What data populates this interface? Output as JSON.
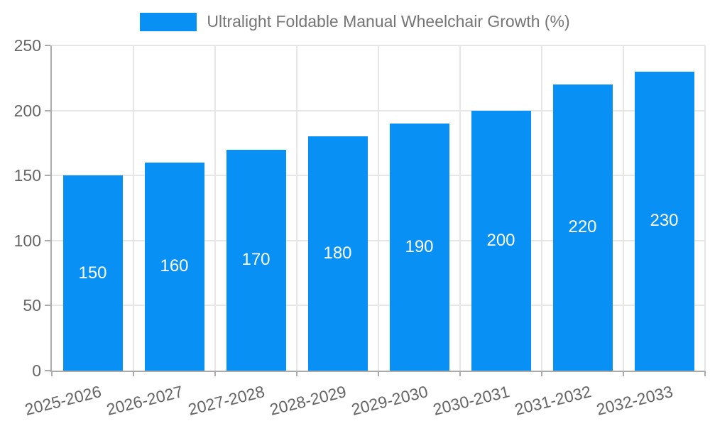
{
  "legend": {
    "items": [
      {
        "label": "Ultralight Foldable Manual Wheelchair Growth (%)",
        "color": "#0890f4"
      }
    ],
    "position": "top-center"
  },
  "chart_data": {
    "type": "bar",
    "title": "",
    "legend": [
      "Ultralight Foldable Manual Wheelchair Growth (%)"
    ],
    "legend_position": "top",
    "categories": [
      "2025-2026",
      "2026-2027",
      "2027-2028",
      "2028-2029",
      "2029-2030",
      "2030-2031",
      "2031-2032",
      "2032-2033"
    ],
    "series": [
      {
        "name": "Ultralight Foldable Manual Wheelchair Growth (%)",
        "values": [
          150,
          160,
          170,
          180,
          190,
          200,
          220,
          230
        ]
      }
    ],
    "bar_value_labels": [
      150,
      160,
      170,
      180,
      190,
      200,
      220,
      230
    ],
    "xlabel": "",
    "ylabel": "",
    "ylim": [
      0,
      250
    ],
    "yticks": [
      0,
      50,
      100,
      150,
      200,
      250
    ],
    "grid": true,
    "x_tick_rotation_deg": -14
  },
  "style": {
    "bar_color": "#0890f4",
    "grid_color": "#e6e6e6",
    "axis_color": "#ababab",
    "tick_text_color": "#666666",
    "legend_text_color": "#757575",
    "value_label_color": "#ffffff",
    "background": "#ffffff"
  }
}
